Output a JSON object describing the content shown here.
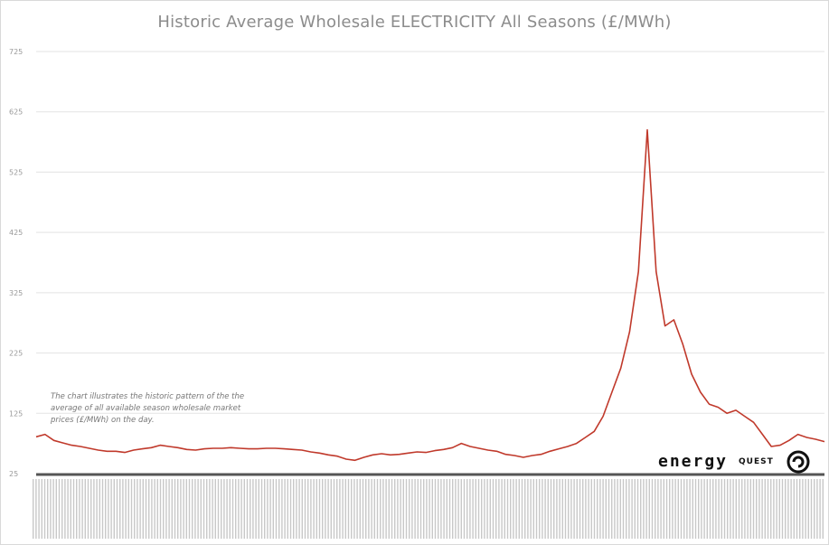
{
  "chart_data": {
    "type": "line",
    "title": "Historic Average Wholesale ELECTRICITY All Seasons (£/MWh)",
    "xlabel": "",
    "ylabel": "",
    "ylim": [
      25,
      725
    ],
    "yticks": [
      25,
      125,
      225,
      325,
      425,
      525,
      625,
      725
    ],
    "grid": "horizontal",
    "legend": "none",
    "line_color": "#c0392b",
    "series": [
      {
        "values": [
          86,
          90,
          80,
          76,
          72,
          70,
          67,
          64,
          62,
          62,
          60,
          64,
          66,
          68,
          72,
          70,
          68,
          65,
          64,
          66,
          67,
          67,
          68,
          67,
          66,
          66,
          67,
          67,
          66,
          65,
          64,
          61,
          59,
          56,
          54,
          49,
          47,
          52,
          56,
          58,
          56,
          57,
          59,
          61,
          60,
          63,
          65,
          68,
          75,
          70,
          67,
          64,
          62,
          57,
          55,
          52,
          55,
          57,
          62,
          66,
          70,
          75,
          85,
          95,
          120,
          160,
          200,
          260,
          360,
          595,
          360,
          270,
          280,
          240,
          190,
          160,
          140,
          135,
          125,
          130,
          120,
          110,
          90,
          70,
          72,
          80,
          90,
          85,
          82,
          78
        ]
      }
    ],
    "annotation": "The chart illustrates the historic pattern of the the average of all available season wholesale market prices (£/MWh) on the day.",
    "logo": {
      "word": "energy",
      "sub": "QUEST"
    }
  }
}
